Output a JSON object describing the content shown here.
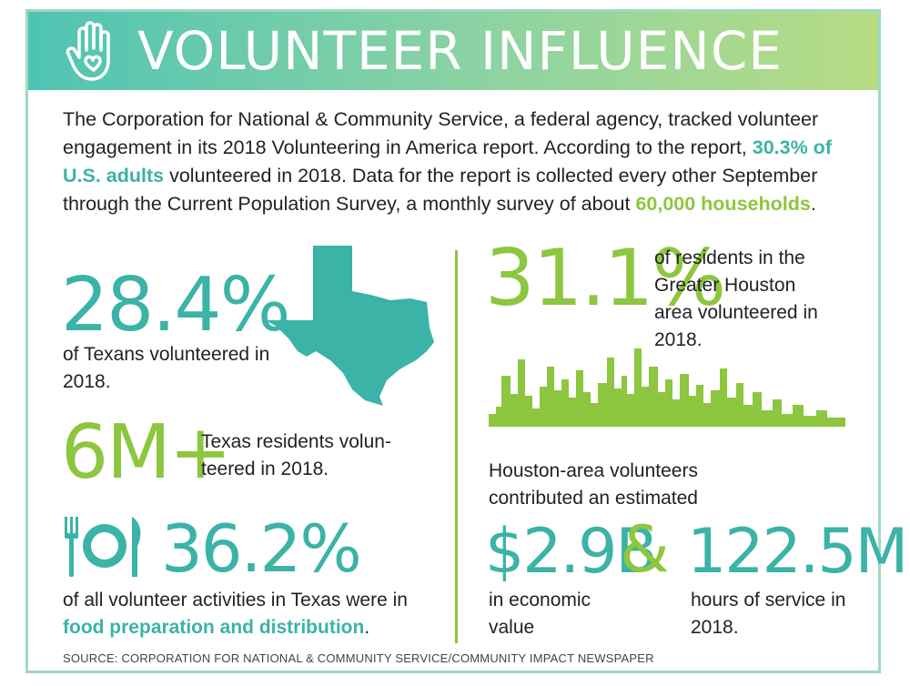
{
  "header": {
    "title": "VOLUNTEER INFLUENCE",
    "icon": "hand-heart-icon"
  },
  "intro": {
    "part1": "The Corporation for National & Community Service, a federal agency, tracked volunteer engagement in its 2018 Volunteering in America report. According to the report, ",
    "highlight1": "30.3% of U.S. adults",
    "part2": " volunteered in 2018. Data for the report is collected every other September through the Current Population Survey, a monthly survey of about ",
    "highlight2": "60,000 households",
    "part3": "."
  },
  "stats": {
    "texas_pct": {
      "value": "28.4%",
      "label": "of Texans volunteered in 2018."
    },
    "texas_residents": {
      "value": "6M+",
      "label": "Texas residents volun- teered in 2018."
    },
    "food": {
      "value": "36.2%",
      "label_prefix": "of all volunteer activities in Texas were in",
      "label_highlight": "food preparation and distribution",
      "label_suffix": "."
    },
    "houston_pct": {
      "value": "31.1%",
      "label": "of residents in the Greater Houston area volunteered in 2018."
    },
    "houston_contrib": {
      "intro": "Houston-area volunteers contributed an estimated",
      "economic_value": "$2.9B",
      "economic_label": "in economic value",
      "ampersand": "&",
      "hours_value": "122.5M",
      "hours_label": "hours of service in 2018."
    }
  },
  "icons": [
    "hand-heart-icon",
    "texas-map-icon",
    "houston-skyline-icon",
    "plate-utensils-icon"
  ],
  "colors": {
    "teal": "#3bb3a6",
    "green": "#8dc63f",
    "banner_start": "#4fc4b4",
    "banner_end": "#b7dc84"
  },
  "source": "SOURCE: CORPORATION FOR NATIONAL & COMMUNITY SERVICE/COMMUNITY IMPACT NEWSPAPER"
}
